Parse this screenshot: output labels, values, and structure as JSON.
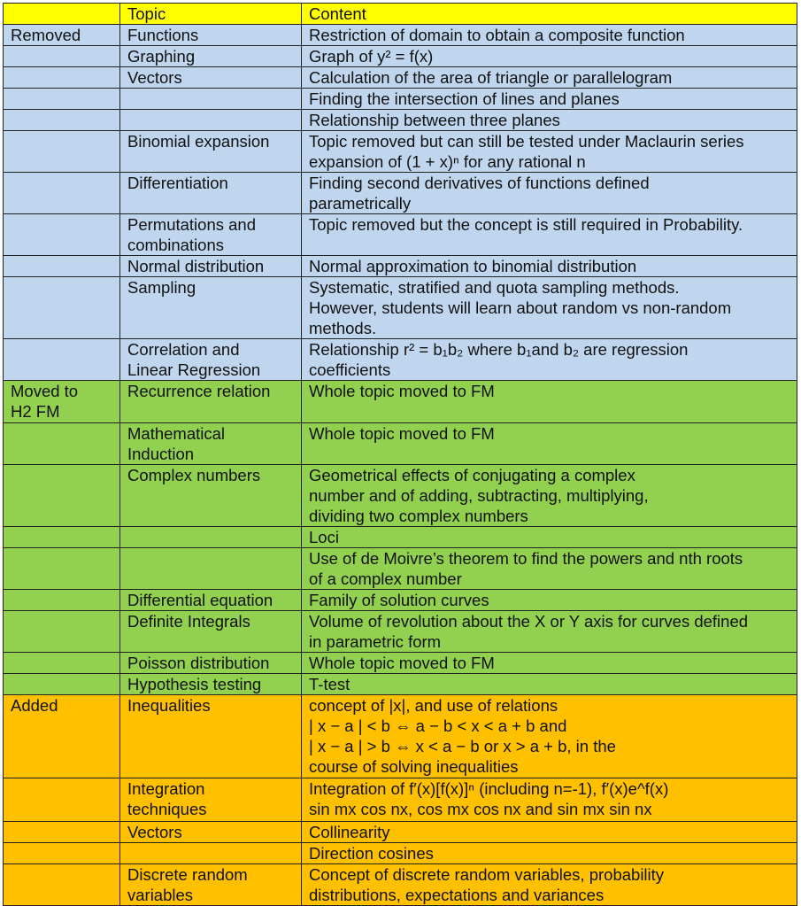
{
  "colors": {
    "header": "#ffff00",
    "removed": "#c0d6ee",
    "moved": "#92d050",
    "added": "#ffc000"
  },
  "header": {
    "category": "",
    "topic": "Topic",
    "content": "Content"
  },
  "rows": [
    {
      "group": "removed",
      "category": "Removed",
      "topic": "Functions",
      "content": "Restriction of domain to obtain a composite function"
    },
    {
      "group": "removed",
      "category": "",
      "topic": "Graphing",
      "content": "Graph of y² = f(x)"
    },
    {
      "group": "removed",
      "category": "",
      "topic": "Vectors",
      "content": "Calculation of the area of triangle or parallelogram"
    },
    {
      "group": "removed",
      "category": "",
      "topic": "",
      "content": "Finding the intersection of lines and planes"
    },
    {
      "group": "removed",
      "category": "",
      "topic": "",
      "content": "Relationship between three planes"
    },
    {
      "group": "removed",
      "category": "",
      "topic": "Binomial expansion",
      "content": "Topic removed but can still be tested under Maclaurin series\nexpansion of (1 + x)ⁿ for any rational n"
    },
    {
      "group": "removed",
      "category": "",
      "topic": "Differentiation",
      "content": "Finding second derivatives of functions defined\nparametrically"
    },
    {
      "group": "removed",
      "category": "",
      "topic": "Permutations and\ncombinations",
      "content": "Topic removed but the concept is still required in Probability."
    },
    {
      "group": "removed",
      "category": "",
      "topic": "Normal distribution",
      "content": "Normal approximation to binomial distribution"
    },
    {
      "group": "removed",
      "category": "",
      "topic": "Sampling",
      "content": "Systematic, stratified and quota sampling methods.\nHowever, students will learn about random vs non-random\nmethods."
    },
    {
      "group": "removed",
      "category": "",
      "topic": "Correlation and\nLinear Regression",
      "content": "Relationship r² = b₁b₂ where b₁and b₂ are regression\ncoefficients"
    },
    {
      "group": "moved",
      "category": "Moved to\nH2 FM",
      "topic": "Recurrence relation",
      "content": "Whole topic moved to FM"
    },
    {
      "group": "moved",
      "category": "",
      "topic": "Mathematical\nInduction",
      "content": "Whole topic moved to FM"
    },
    {
      "group": "moved",
      "category": "",
      "topic": "Complex numbers",
      "content": "Geometrical effects of conjugating a complex\nnumber and of adding, subtracting, multiplying,\ndividing two complex numbers"
    },
    {
      "group": "moved",
      "category": "",
      "topic": "",
      "content": "Loci"
    },
    {
      "group": "moved",
      "category": "",
      "topic": "",
      "content": "Use of de Moivre’s theorem to find the powers and nth roots\nof a complex number"
    },
    {
      "group": "moved",
      "category": "",
      "topic": "Differential equation",
      "content": "Family of solution curves"
    },
    {
      "group": "moved",
      "category": "",
      "topic": "Definite Integrals",
      "content": "Volume of revolution about the X or Y axis for curves defined\nin parametric form"
    },
    {
      "group": "moved",
      "category": "",
      "topic": "Poisson distribution",
      "content": "Whole topic moved to FM"
    },
    {
      "group": "moved",
      "category": "",
      "topic": "Hypothesis testing",
      "content": "T-test"
    },
    {
      "group": "added",
      "category": "Added",
      "topic": "Inequalities",
      "content": "concept of |x|, and use of relations\n| x − a | < b ⇔ a − b < x < a + b and\n| x − a | > b ⇔ x < a − b or x > a + b, in the\ncourse of solving inequalities"
    },
    {
      "group": "added",
      "category": "",
      "topic": "Integration\ntechniques",
      "content": "Integration of f′(x)[f(x)]ⁿ (including n=-1), f′(x)e^f(x)\nsin mx cos nx, cos mx cos nx and sin mx sin nx"
    },
    {
      "group": "added",
      "category": "",
      "topic": "Vectors",
      "content": "Collinearity"
    },
    {
      "group": "added",
      "category": "",
      "topic": "",
      "content": "Direction cosines"
    },
    {
      "group": "added",
      "category": "",
      "topic": "Discrete random\nvariables",
      "content": "Concept of discrete random variables, probability\ndistributions, expectations and variances"
    }
  ]
}
